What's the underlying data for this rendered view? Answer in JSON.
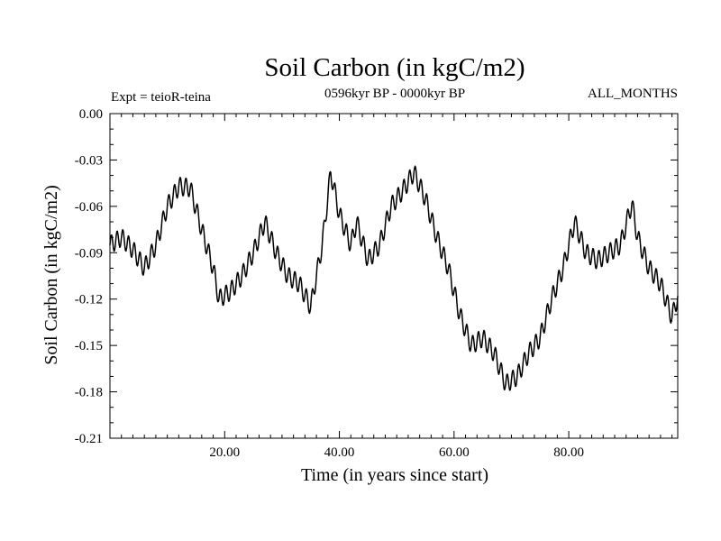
{
  "chart_data": {
    "type": "line",
    "title": "Soil Carbon (in kgC/m2)",
    "subtitle": "0596kyr BP - 0000kyr BP",
    "left_label": "Expt = teioR-teina",
    "right_label": "ALL_MONTHS",
    "xlabel": "Time (in years since start)",
    "ylabel": "Soil Carbon (in kgC/m2)",
    "xlim": [
      0,
      99
    ],
    "ylim": [
      -0.21,
      0.0
    ],
    "x_ticks": [
      20,
      40,
      60,
      80
    ],
    "x_tick_labels": [
      "20.00",
      "40.00",
      "60.00",
      "80.00"
    ],
    "y_ticks": [
      0.0,
      -0.03,
      -0.06,
      -0.09,
      -0.12,
      -0.15,
      -0.18,
      -0.21
    ],
    "y_tick_labels": [
      "0.00",
      "-0.03",
      "-0.06",
      "-0.09",
      "-0.12",
      "-0.15",
      "-0.18",
      "-0.21"
    ],
    "series": [
      {
        "name": "Soil Carbon",
        "color": "#000000",
        "trend_x": [
          0,
          2,
          4,
          6,
          8,
          10,
          12,
          14,
          16,
          18,
          19,
          21,
          23,
          25,
          27,
          29,
          31,
          33,
          35,
          37,
          38.5,
          40,
          42,
          43,
          45,
          47,
          49,
          51,
          53,
          55,
          57,
          59,
          61,
          63,
          65,
          67,
          69,
          71,
          73,
          75,
          77,
          79,
          81,
          83,
          85,
          87,
          89,
          91,
          92,
          94,
          96,
          98,
          99
        ],
        "trend_y": [
          -0.085,
          -0.08,
          -0.088,
          -0.1,
          -0.085,
          -0.06,
          -0.047,
          -0.048,
          -0.075,
          -0.1,
          -0.12,
          -0.115,
          -0.105,
          -0.09,
          -0.07,
          -0.09,
          -0.105,
          -0.11,
          -0.125,
          -0.085,
          -0.038,
          -0.065,
          -0.085,
          -0.07,
          -0.095,
          -0.085,
          -0.06,
          -0.05,
          -0.038,
          -0.055,
          -0.08,
          -0.1,
          -0.13,
          -0.15,
          -0.145,
          -0.155,
          -0.175,
          -0.17,
          -0.155,
          -0.145,
          -0.12,
          -0.1,
          -0.07,
          -0.09,
          -0.095,
          -0.09,
          -0.085,
          -0.058,
          -0.08,
          -0.1,
          -0.11,
          -0.132,
          -0.118
        ],
        "oscillation_amplitude": 0.006,
        "oscillation_period_years": 1.0,
        "sample_step_years": 0.1
      }
    ]
  }
}
